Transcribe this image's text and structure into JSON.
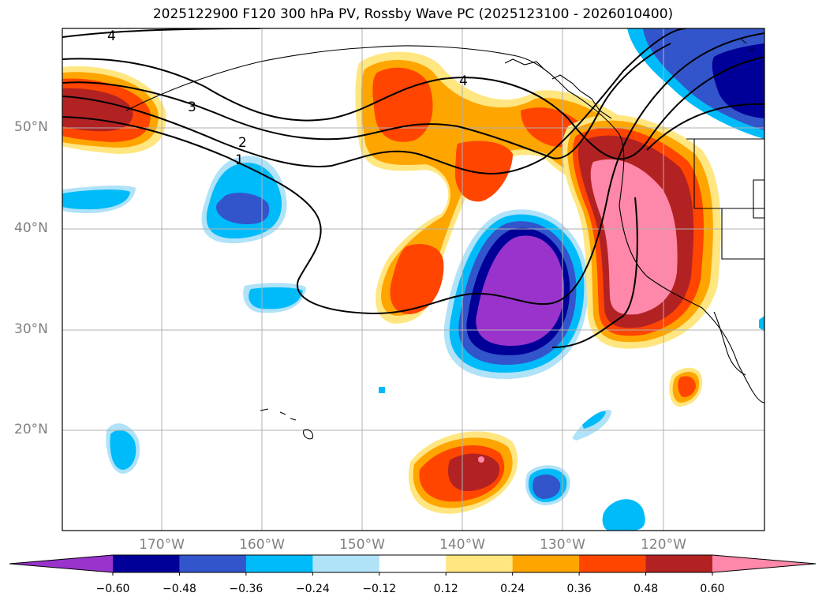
{
  "title": "2025122900 F120 300 hPa PV, Rossby Wave PC (2025123100 - 2026010400)",
  "lat_labels": [
    "50°N",
    "40°N",
    "30°N",
    "20°N"
  ],
  "lon_labels": [
    "170°W",
    "160°W",
    "150°W",
    "140°W",
    "130°W",
    "120°W"
  ],
  "contour_labels": [
    "4",
    "3",
    "2",
    "1",
    "4"
  ],
  "colorbar": {
    "ticks": [
      "−0.60",
      "−0.48",
      "−0.36",
      "−0.24",
      "−0.12",
      "0.12",
      "0.24",
      "0.36",
      "0.48",
      "0.60"
    ],
    "colors": [
      "#9933cc",
      "#000099",
      "#3355cc",
      "#00bbf9",
      "#b0e2f8",
      "#ffffff",
      "#ffe680",
      "#ffa500",
      "#ff4500",
      "#b22222",
      "#ff88aa"
    ]
  }
}
